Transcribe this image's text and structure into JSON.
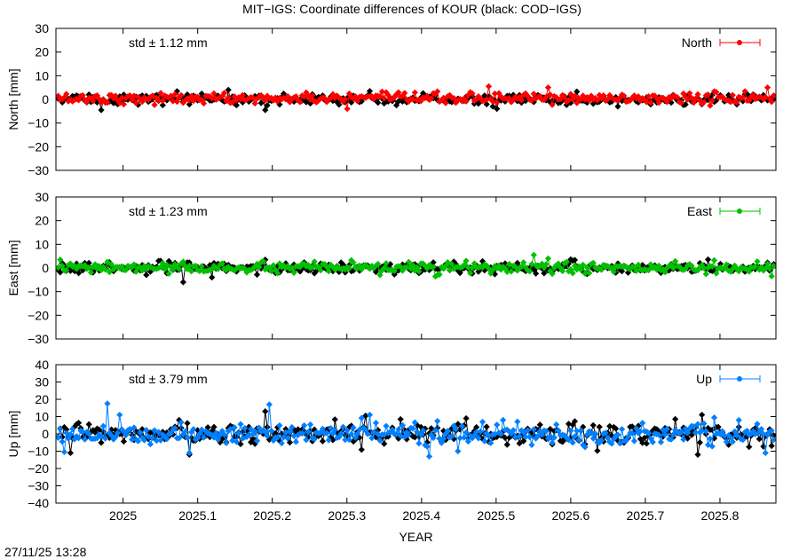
{
  "title": "MIT−IGS: Coordinate differences of KOUR (black: COD−IGS)",
  "timestamp": "27/11/25 13:28",
  "colors": {
    "north": "#ff0000",
    "east": "#00c000",
    "up": "#0080ff",
    "reference": "#000000"
  },
  "chart_data": [
    {
      "type": "line",
      "ylabel": "North [mm]",
      "ylim": [
        -30,
        30
      ],
      "yticks": [
        -30,
        -20,
        -10,
        0,
        10,
        20,
        30
      ],
      "xlim": [
        2024.91,
        2025.875
      ],
      "xticks": [
        2025,
        2025.1,
        2025.2,
        2025.3,
        2025.4,
        2025.5,
        2025.6,
        2025.7,
        2025.8
      ],
      "legend": "North",
      "std_label": "std ± 1.12 mm",
      "series": [
        {
          "name": "North",
          "color": "#ff0000",
          "spikes": [
            [
              2025.49,
              5.5
            ],
            [
              2025.57,
              5.0
            ],
            [
              2025.865,
              5.0
            ],
            [
              2025.3,
              -4.0
            ],
            [
              2025.465,
              3.0
            ],
            [
              2025.54,
              2.5
            ]
          ]
        },
        {
          "color": "#000000",
          "spikes": [
            [
              2025.19,
              4.5
            ],
            [
              2025.14,
              4.0
            ],
            [
              2024.97,
              -4.5
            ],
            [
              2025.19,
              -4.5
            ],
            [
              2025.33,
              3.5
            ],
            [
              2025.5,
              -4.0
            ]
          ]
        }
      ]
    },
    {
      "type": "line",
      "ylabel": "East [mm]",
      "ylim": [
        -30,
        30
      ],
      "yticks": [
        -30,
        -20,
        -10,
        0,
        10,
        20,
        30
      ],
      "xlim": [
        2024.91,
        2025.875
      ],
      "xticks": [
        2025,
        2025.1,
        2025.2,
        2025.3,
        2025.4,
        2025.5,
        2025.6,
        2025.7,
        2025.8
      ],
      "legend": "East",
      "std_label": "std ± 1.23 mm",
      "series": [
        {
          "name": "East",
          "color": "#00c000",
          "spikes": [
            [
              2025.55,
              5.5
            ],
            [
              2024.915,
              3.5
            ],
            [
              2025.57,
              4.0
            ],
            [
              2025.46,
              3.0
            ],
            [
              2025.87,
              -3.5
            ]
          ]
        },
        {
          "color": "#000000",
          "spikes": [
            [
              2025.08,
              -6.0
            ],
            [
              2025.05,
              3.0
            ],
            [
              2025.19,
              3.5
            ],
            [
              2025.12,
              -4.0
            ]
          ]
        }
      ]
    },
    {
      "type": "line",
      "ylabel": "Up [mm]",
      "ylim": [
        -40,
        40
      ],
      "yticks": [
        -40,
        -30,
        -20,
        -10,
        0,
        10,
        20,
        30,
        40
      ],
      "xlim": [
        2024.91,
        2025.875
      ],
      "xticks": [
        2025,
        2025.1,
        2025.2,
        2025.3,
        2025.4,
        2025.5,
        2025.6,
        2025.7,
        2025.8
      ],
      "xticklabels": [
        "2025",
        "2025.1",
        "2025.2",
        "2025.3",
        "2025.4",
        "2025.5",
        "2025.6",
        "2025.7",
        "2025.8"
      ],
      "xlabel": "YEAR",
      "legend": "Up",
      "std_label": "std ± 3.79 mm",
      "series": [
        {
          "name": "Up",
          "color": "#0080ff",
          "spikes": [
            [
              2024.98,
              17.5
            ],
            [
              2025.195,
              17.0
            ],
            [
              2024.995,
              11.0
            ],
            [
              2025.41,
              -13.0
            ],
            [
              2025.09,
              -11.0
            ],
            [
              2025.86,
              -11.0
            ],
            [
              2025.33,
              11.0
            ],
            [
              2025.51,
              8.0
            ],
            [
              2025.45,
              -10.0
            ]
          ]
        },
        {
          "color": "#000000",
          "spikes": [
            [
              2025.775,
              11.0
            ],
            [
              2025.77,
              -12.0
            ],
            [
              2025.19,
              13.0
            ],
            [
              2025.09,
              -12.0
            ],
            [
              2025.075,
              8.0
            ],
            [
              2024.93,
              -11.0
            ],
            [
              2025.325,
              10.5
            ],
            [
              2025.46,
              9.0
            ]
          ]
        }
      ]
    }
  ]
}
